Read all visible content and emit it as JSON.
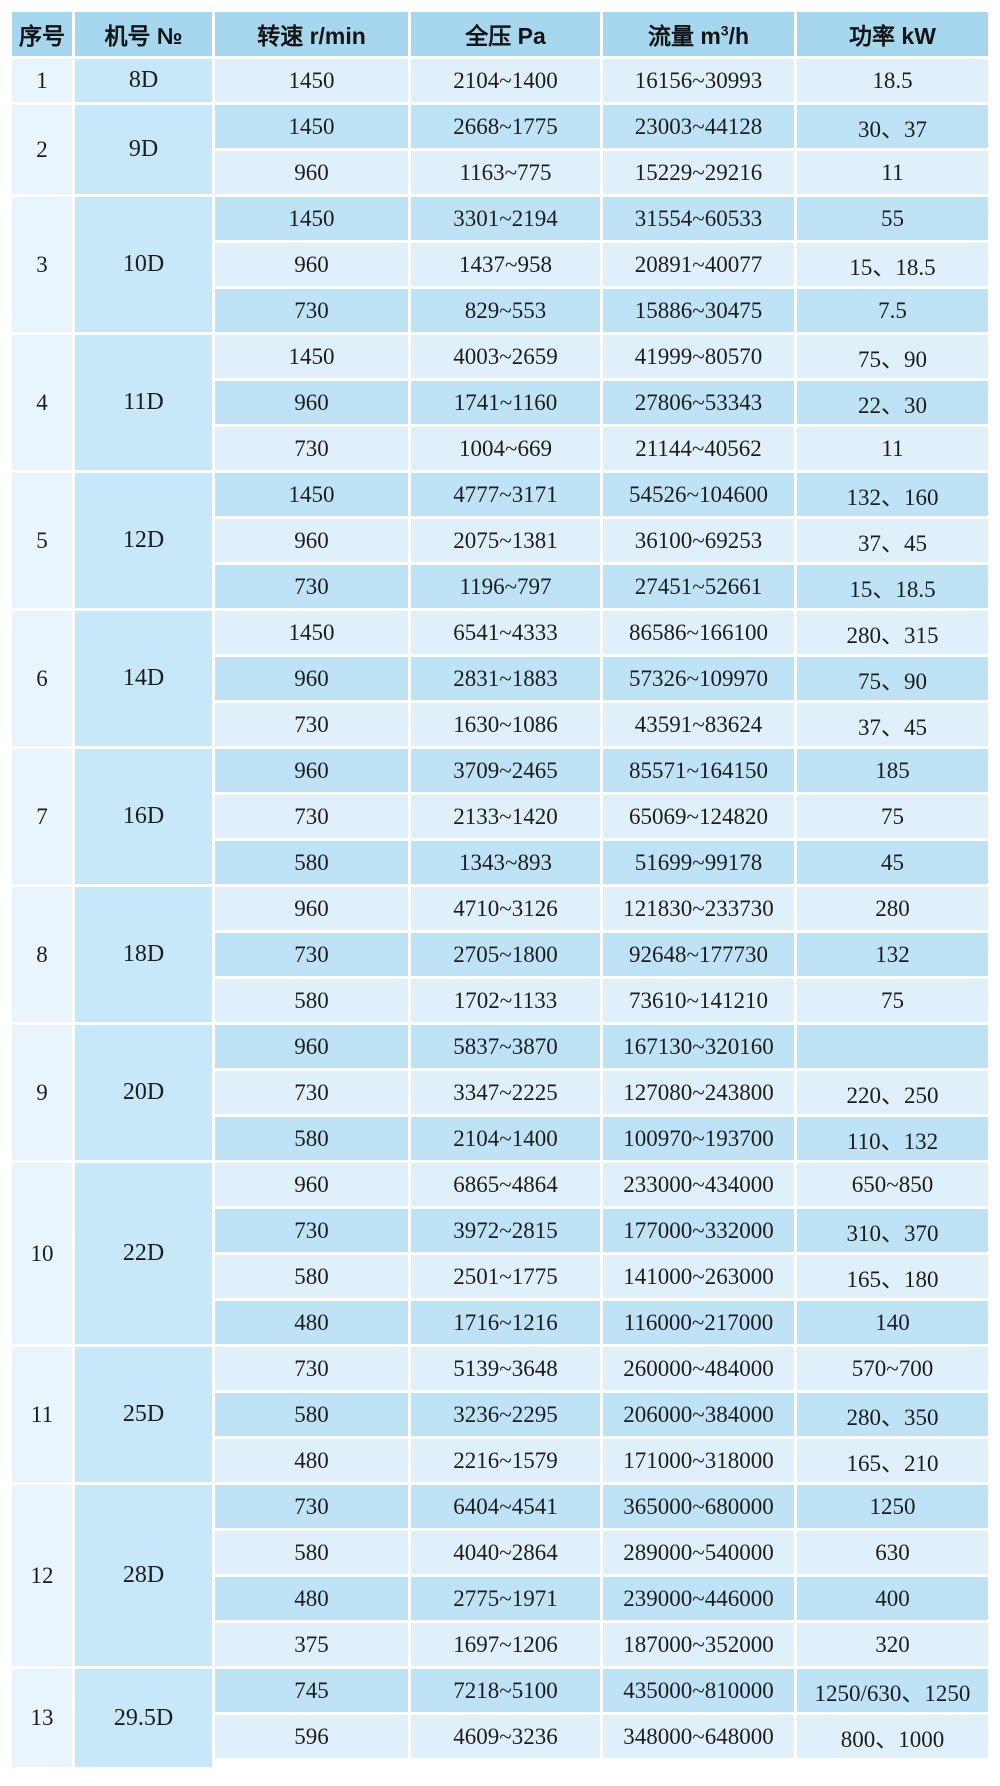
{
  "table": {
    "columns": {
      "index": "序号",
      "model": "机号 №",
      "speed": "转速 r/min",
      "pressure": "全压 Pa",
      "flow_pre": "流量 m",
      "flow_sup": "3",
      "flow_post": "/h",
      "power": "功率 kW"
    },
    "groups": [
      {
        "no": "1",
        "model": "8D",
        "rows": [
          {
            "speed": "1450",
            "pressure": "2104~1400",
            "flow": "16156~30993",
            "power": "18.5"
          }
        ]
      },
      {
        "no": "2",
        "model": "9D",
        "rows": [
          {
            "speed": "1450",
            "pressure": "2668~1775",
            "flow": "23003~44128",
            "power": "30、37"
          },
          {
            "speed": "960",
            "pressure": "1163~775",
            "flow": "15229~29216",
            "power": "11"
          }
        ]
      },
      {
        "no": "3",
        "model": "10D",
        "rows": [
          {
            "speed": "1450",
            "pressure": "3301~2194",
            "flow": "31554~60533",
            "power": "55"
          },
          {
            "speed": "960",
            "pressure": "1437~958",
            "flow": "20891~40077",
            "power": "15、18.5"
          },
          {
            "speed": "730",
            "pressure": "829~553",
            "flow": "15886~30475",
            "power": "7.5"
          }
        ]
      },
      {
        "no": "4",
        "model": "11D",
        "rows": [
          {
            "speed": "1450",
            "pressure": "4003~2659",
            "flow": "41999~80570",
            "power": "75、90"
          },
          {
            "speed": "960",
            "pressure": "1741~1160",
            "flow": "27806~53343",
            "power": "22、30"
          },
          {
            "speed": "730",
            "pressure": "1004~669",
            "flow": "21144~40562",
            "power": "11"
          }
        ]
      },
      {
        "no": "5",
        "model": "12D",
        "rows": [
          {
            "speed": "1450",
            "pressure": "4777~3171",
            "flow": "54526~104600",
            "power": "132、160"
          },
          {
            "speed": "960",
            "pressure": "2075~1381",
            "flow": "36100~69253",
            "power": "37、45"
          },
          {
            "speed": "730",
            "pressure": "1196~797",
            "flow": "27451~52661",
            "power": "15、18.5"
          }
        ]
      },
      {
        "no": "6",
        "model": "14D",
        "rows": [
          {
            "speed": "1450",
            "pressure": "6541~4333",
            "flow": "86586~166100",
            "power": "280、315"
          },
          {
            "speed": "960",
            "pressure": "2831~1883",
            "flow": "57326~109970",
            "power": "75、90"
          },
          {
            "speed": "730",
            "pressure": "1630~1086",
            "flow": "43591~83624",
            "power": "37、45"
          }
        ]
      },
      {
        "no": "7",
        "model": "16D",
        "rows": [
          {
            "speed": "960",
            "pressure": "3709~2465",
            "flow": "85571~164150",
            "power": "185"
          },
          {
            "speed": "730",
            "pressure": "2133~1420",
            "flow": "65069~124820",
            "power": "75"
          },
          {
            "speed": "580",
            "pressure": "1343~893",
            "flow": "51699~99178",
            "power": "45"
          }
        ]
      },
      {
        "no": "8",
        "model": "18D",
        "rows": [
          {
            "speed": "960",
            "pressure": "4710~3126",
            "flow": "121830~233730",
            "power": "280"
          },
          {
            "speed": "730",
            "pressure": "2705~1800",
            "flow": "92648~177730",
            "power": "132"
          },
          {
            "speed": "580",
            "pressure": "1702~1133",
            "flow": "73610~141210",
            "power": "75"
          }
        ]
      },
      {
        "no": "9",
        "model": "20D",
        "rows": [
          {
            "speed": "960",
            "pressure": "5837~3870",
            "flow": "167130~320160",
            "power": ""
          },
          {
            "speed": "730",
            "pressure": "3347~2225",
            "flow": "127080~243800",
            "power": "220、250"
          },
          {
            "speed": "580",
            "pressure": "2104~1400",
            "flow": "100970~193700",
            "power": "110、132"
          }
        ]
      },
      {
        "no": "10",
        "model": "22D",
        "rows": [
          {
            "speed": "960",
            "pressure": "6865~4864",
            "flow": "233000~434000",
            "power": "650~850"
          },
          {
            "speed": "730",
            "pressure": "3972~2815",
            "flow": "177000~332000",
            "power": "310、370"
          },
          {
            "speed": "580",
            "pressure": "2501~1775",
            "flow": "141000~263000",
            "power": "165、180"
          },
          {
            "speed": "480",
            "pressure": "1716~1216",
            "flow": "116000~217000",
            "power": "140"
          }
        ]
      },
      {
        "no": "11",
        "model": "25D",
        "rows": [
          {
            "speed": "730",
            "pressure": "5139~3648",
            "flow": "260000~484000",
            "power": "570~700"
          },
          {
            "speed": "580",
            "pressure": "3236~2295",
            "flow": "206000~384000",
            "power": "280、350"
          },
          {
            "speed": "480",
            "pressure": "2216~1579",
            "flow": "171000~318000",
            "power": "165、210"
          }
        ]
      },
      {
        "no": "12",
        "model": "28D",
        "rows": [
          {
            "speed": "730",
            "pressure": "6404~4541",
            "flow": "365000~680000",
            "power": "1250"
          },
          {
            "speed": "580",
            "pressure": "4040~2864",
            "flow": "289000~540000",
            "power": "630"
          },
          {
            "speed": "480",
            "pressure": "2775~1971",
            "flow": "239000~446000",
            "power": "400"
          },
          {
            "speed": "375",
            "pressure": "1697~1206",
            "flow": "187000~352000",
            "power": "320"
          }
        ]
      },
      {
        "no": "13",
        "model": "29.5D",
        "rows": [
          {
            "speed": "745",
            "pressure": "7218~5100",
            "flow": "435000~810000",
            "power": "1250/630、1250"
          },
          {
            "speed": "596",
            "pressure": "4609~3236",
            "flow": "348000~648000",
            "power": "800、1000"
          }
        ]
      }
    ]
  },
  "colors": {
    "header_bg": "#a6d7ee",
    "row_dark": "#bee3f6",
    "row_light": "#dff0fa",
    "index_col_bg": "#e8f5fd",
    "model_col_bg": "#c6e8f8"
  }
}
